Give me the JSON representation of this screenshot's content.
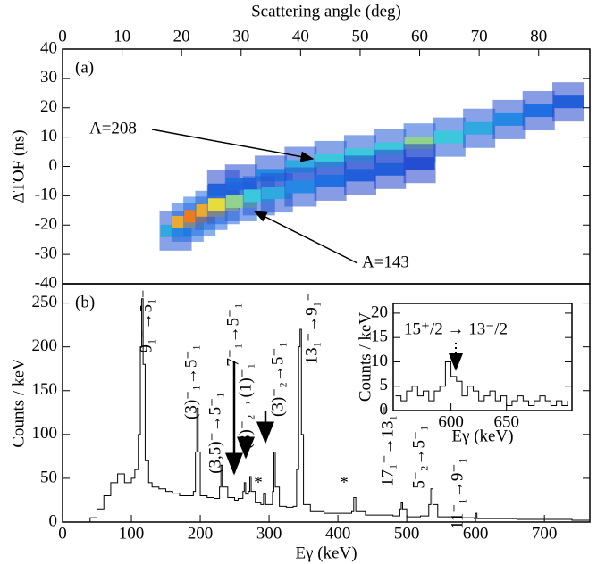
{
  "chart_data": [
    {
      "type": "heatmap",
      "xlabel": "Scattering angle (deg)",
      "ylabel": "ΔTOF (ns)",
      "panel": "(a)",
      "xlim": [
        0,
        88.6
      ],
      "xticks": [
        0,
        10,
        20,
        30,
        40,
        50,
        60,
        70,
        80
      ],
      "ylim": [
        -40,
        40
      ],
      "yticks": [
        -40,
        -30,
        -20,
        -10,
        0,
        10,
        20,
        30,
        40
      ],
      "ridges": [
        {
          "label": "A=208",
          "x": [
            27,
            30,
            35,
            40,
            45,
            50,
            55,
            60,
            65,
            70,
            75,
            80,
            85
          ],
          "y": [
            -8,
            -6,
            -3,
            0,
            2,
            4,
            6,
            8,
            10,
            13,
            16,
            19,
            22
          ],
          "intensity": [
            2,
            3,
            4,
            5,
            6,
            6,
            6,
            7,
            6,
            5,
            4,
            3,
            2
          ]
        },
        {
          "label": "A=143",
          "x": [
            19,
            21,
            23,
            25,
            27,
            30,
            33,
            36,
            40,
            45,
            50,
            55,
            60
          ],
          "y": [
            -22,
            -19,
            -17,
            -15,
            -13,
            -12,
            -10,
            -9,
            -7,
            -5,
            -3,
            -1,
            1
          ],
          "intensity": [
            5,
            9,
            10,
            9,
            8,
            7,
            6,
            5,
            4,
            3,
            2,
            2,
            1
          ]
        }
      ]
    },
    {
      "type": "line",
      "xlabel": "Eγ (keV)",
      "ylabel": "Counts / keV",
      "panel": "(b)",
      "color": "#000000",
      "xlim": [
        0,
        766
      ],
      "xticks": [
        0,
        100,
        200,
        300,
        400,
        500,
        600,
        700
      ],
      "ylim": [
        0,
        272
      ],
      "yticks": [
        0,
        50,
        100,
        150,
        200,
        250
      ],
      "x": [
        30,
        40,
        50,
        60,
        70,
        80,
        90,
        100,
        105,
        110,
        113,
        115,
        117,
        120,
        125,
        130,
        140,
        150,
        160,
        170,
        180,
        190,
        193,
        195,
        197,
        200,
        210,
        220,
        228,
        230,
        232,
        240,
        250,
        255,
        262,
        264,
        266,
        270,
        272,
        274,
        280,
        288,
        292,
        295,
        300,
        305,
        307,
        309,
        315,
        325,
        335,
        340,
        343,
        345,
        347,
        350,
        360,
        380,
        400,
        420,
        423,
        426,
        440,
        460,
        480,
        490,
        492,
        494,
        500,
        520,
        532,
        535,
        538,
        545,
        570,
        598,
        600,
        602,
        620,
        660,
        700,
        740,
        765
      ],
      "values": [
        0,
        5,
        15,
        30,
        45,
        55,
        45,
        50,
        60,
        100,
        200,
        255,
        180,
        70,
        45,
        40,
        38,
        35,
        33,
        30,
        30,
        35,
        80,
        130,
        80,
        30,
        28,
        27,
        40,
        65,
        40,
        28,
        25,
        27,
        35,
        45,
        32,
        35,
        52,
        35,
        22,
        20,
        32,
        20,
        20,
        35,
        80,
        40,
        18,
        17,
        18,
        60,
        200,
        220,
        100,
        20,
        12,
        10,
        10,
        12,
        28,
        12,
        8,
        8,
        7,
        15,
        22,
        15,
        6,
        7,
        20,
        38,
        20,
        6,
        5,
        4,
        10,
        4,
        4,
        3,
        3,
        2,
        2
      ],
      "annotations": [
        "9₁⁻→5₁⁻",
        "(3)⁻₁→5⁻₁",
        "(3,5)⁻→5⁻₁",
        "7⁻₁→5⁻₁",
        "(3)⁻₂→(1)⁻₁",
        "(3)⁻₂→5⁻₁",
        "13₁⁻→9₁⁻",
        "17₁⁻→13₁⁻",
        "5⁻₂→5⁻₁",
        "11⁻₁→9⁻₁",
        "*",
        "*"
      ]
    },
    {
      "type": "line",
      "xlabel": "Eγ (keV)",
      "ylabel": "Counts / keV",
      "color": "#000000",
      "xlim": [
        548,
        709
      ],
      "xticks": [
        600,
        650
      ],
      "ylim": [
        0,
        22
      ],
      "yticks": [
        0,
        5,
        10,
        15,
        20
      ],
      "x": [
        550,
        555,
        560,
        565,
        570,
        575,
        580,
        585,
        590,
        595,
        600,
        605,
        610,
        615,
        620,
        625,
        630,
        635,
        640,
        645,
        650,
        655,
        660,
        665,
        670,
        675,
        680,
        685,
        690,
        695,
        700,
        705
      ],
      "values": [
        3,
        2,
        4,
        5,
        3,
        4,
        2,
        4,
        5,
        10,
        7,
        6,
        3,
        5,
        4,
        2,
        3,
        4,
        2,
        3,
        1,
        2,
        3,
        2,
        1,
        2,
        3,
        2,
        1,
        2,
        1,
        2
      ],
      "annotations": [
        "15⁺/2 → 13⁻/2"
      ]
    }
  ]
}
